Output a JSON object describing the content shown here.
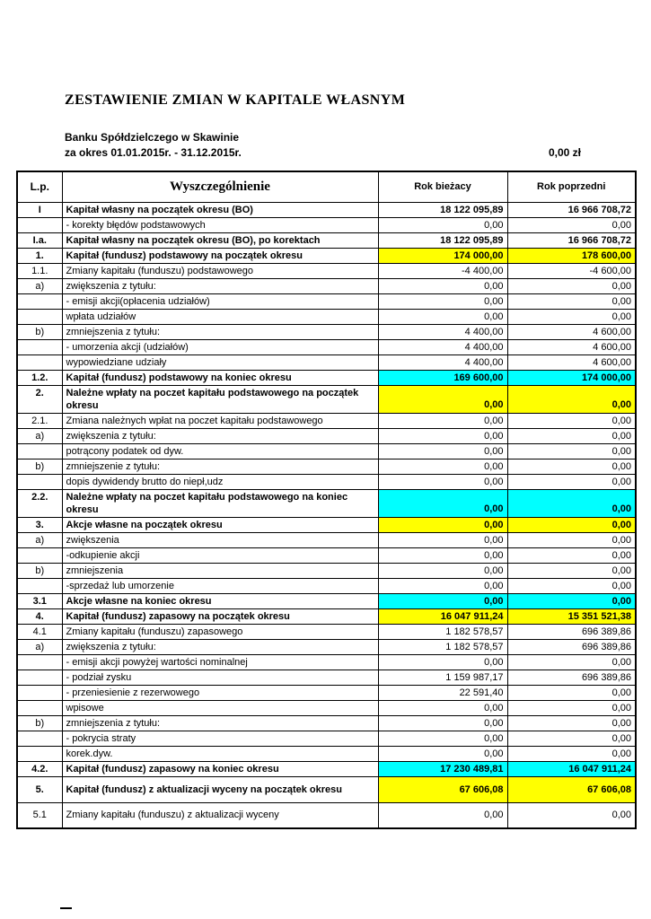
{
  "document": {
    "title": "ZESTAWIENIE ZMIAN W KAPITALE WŁASNYM",
    "bank_name": "Banku Spółdzielczego w Skawinie",
    "period": "za okres 01.01.2015r. - 31.12.2015r.",
    "amount": "0,00 zł"
  },
  "colors": {
    "highlight_yellow": "#FFFF00",
    "highlight_cyan": "#00FFFF"
  },
  "table": {
    "headers": {
      "lp": "L.p.",
      "description": "Wyszczególnienie",
      "current_year": "Rok bieżacy",
      "previous_year": "Rok poprzedni"
    },
    "rows": [
      {
        "lp": "I",
        "desc": "Kapitał własny na początek okresu (BO)",
        "cur": "18 122 095,89",
        "prev": "16 966 708,72",
        "bold": true
      },
      {
        "lp": "",
        "desc": "- korekty błędów podstawowych",
        "cur": "0,00",
        "prev": "0,00"
      },
      {
        "lp": "I.a.",
        "desc": "Kapitał własny na początek okresu (BO), po korektach",
        "cur": "18 122 095,89",
        "prev": "16 966 708,72",
        "bold": true
      },
      {
        "lp": "1.",
        "desc": "Kapitał (fundusz) podstawowy na początek okresu",
        "cur": "174 000,00",
        "prev": "178 600,00",
        "bold": true,
        "hl": "yellow"
      },
      {
        "lp": "1.1.",
        "desc": "Zmiany kapitału (funduszu) podstawowego",
        "cur": "-4 400,00",
        "prev": "-4 600,00"
      },
      {
        "lp": "a)",
        "desc": "zwiększenia z tytułu:",
        "cur": "0,00",
        "prev": "0,00"
      },
      {
        "lp": "",
        "desc": "- emisji akcji(opłacenia udziałów)",
        "cur": "0,00",
        "prev": "0,00"
      },
      {
        "lp": "",
        "desc": "wpłata udziałów",
        "cur": "0,00",
        "prev": "0,00"
      },
      {
        "lp": "b)",
        "desc": "zmniejszenia z tytułu:",
        "cur": "4 400,00",
        "prev": "4 600,00"
      },
      {
        "lp": "",
        "desc": "- umorzenia akcji (udziałów)",
        "cur": "4 400,00",
        "prev": "4 600,00"
      },
      {
        "lp": "",
        "desc": "wypowiedziane udziały",
        "cur": "4 400,00",
        "prev": "4 600,00"
      },
      {
        "lp": "1.2.",
        "desc": "Kapitał (fundusz) podstawowy na koniec okresu",
        "cur": "169 600,00",
        "prev": "174 000,00",
        "bold": true,
        "hl": "cyan"
      },
      {
        "lp": "2.",
        "desc": "Należne wpłaty na poczet kapitału podstawowego na początek okresu",
        "cur": "0,00",
        "prev": "0,00",
        "bold": true,
        "hl": "yellow",
        "twoline": true
      },
      {
        "lp": "2.1.",
        "desc": "Zmiana należnych wpłat na poczet kapitału podstawowego",
        "cur": "0,00",
        "prev": "0,00"
      },
      {
        "lp": "a)",
        "desc": "zwiększenia z tytułu:",
        "cur": "0,00",
        "prev": "0,00"
      },
      {
        "lp": "",
        "desc": "potrącony podatek od dyw.",
        "cur": "0,00",
        "prev": "0,00"
      },
      {
        "lp": "b)",
        "desc": "zmniejszenie z tytułu:",
        "cur": "0,00",
        "prev": "0,00"
      },
      {
        "lp": "",
        "desc": "dopis dywidendy brutto do niepł,udz",
        "cur": "0,00",
        "prev": "0,00"
      },
      {
        "lp": "2.2.",
        "desc": "Należne wpłaty na poczet kapitału podstawowego na koniec okresu",
        "cur": "0,00",
        "prev": "0,00",
        "bold": true,
        "hl": "cyan",
        "twoline": true
      },
      {
        "lp": "3.",
        "desc": "Akcje własne na początek okresu",
        "cur": "0,00",
        "prev": "0,00",
        "bold": true,
        "hl": "yellow"
      },
      {
        "lp": "a)",
        "desc": "zwiększenia",
        "cur": "0,00",
        "prev": "0,00"
      },
      {
        "lp": "",
        "desc": "-odkupienie akcji",
        "cur": "0,00",
        "prev": "0,00"
      },
      {
        "lp": "b)",
        "desc": "zmniejszenia",
        "cur": "0,00",
        "prev": "0,00"
      },
      {
        "lp": "",
        "desc": "-sprzedaż lub umorzenie",
        "cur": "0,00",
        "prev": "0,00"
      },
      {
        "lp": "3.1",
        "desc": "Akcje własne na koniec okresu",
        "cur": "0,00",
        "prev": "0,00",
        "bold": true,
        "hl": "cyan"
      },
      {
        "lp": "4.",
        "desc": "Kapitał (fundusz) zapasowy na początek okresu",
        "cur": "16 047 911,24",
        "prev": "15 351 521,38",
        "bold": true,
        "hl": "yellow"
      },
      {
        "lp": "4.1",
        "desc": "Zmiany kapitału (funduszu) zapasowego",
        "cur": "1 182 578,57",
        "prev": "696 389,86"
      },
      {
        "lp": "a)",
        "desc": "zwiększenia z tytułu:",
        "cur": "1 182 578,57",
        "prev": "696 389,86"
      },
      {
        "lp": "",
        "desc": "- emisji akcji powyżej wartości nominalnej",
        "cur": "0,00",
        "prev": "0,00"
      },
      {
        "lp": "",
        "desc": "- podział zysku",
        "cur": "1 159 987,17",
        "prev": "696 389,86"
      },
      {
        "lp": "",
        "desc": "- przeniesienie z rezerwowego",
        "cur": "22 591,40",
        "prev": "0,00"
      },
      {
        "lp": "",
        "desc": "wpisowe",
        "cur": "0,00",
        "prev": "0,00"
      },
      {
        "lp": "b)",
        "desc": "zmniejszenia z tytułu:",
        "cur": "0,00",
        "prev": "0,00"
      },
      {
        "lp": "",
        "desc": "- pokrycia straty",
        "cur": "0,00",
        "prev": "0,00"
      },
      {
        "lp": "",
        "desc": "korek.dyw.",
        "cur": "0,00",
        "prev": "0,00"
      },
      {
        "lp": "4.2.",
        "desc": "Kapitał (fundusz) zapasowy na koniec okresu",
        "cur": "17 230 489,81",
        "prev": "16 047 911,24",
        "bold": true,
        "hl": "cyan"
      },
      {
        "lp": "5.",
        "desc": "Kapitał (fundusz) z aktualizacji wyceny na początek okresu",
        "cur": "67 606,08",
        "prev": "67 606,08",
        "bold": true,
        "hl": "yellow",
        "tall": true
      },
      {
        "lp": "5.1",
        "desc": "Zmiany kapitału (funduszu) z aktualizacji wyceny",
        "cur": "0,00",
        "prev": "0,00",
        "tall": true
      }
    ]
  }
}
